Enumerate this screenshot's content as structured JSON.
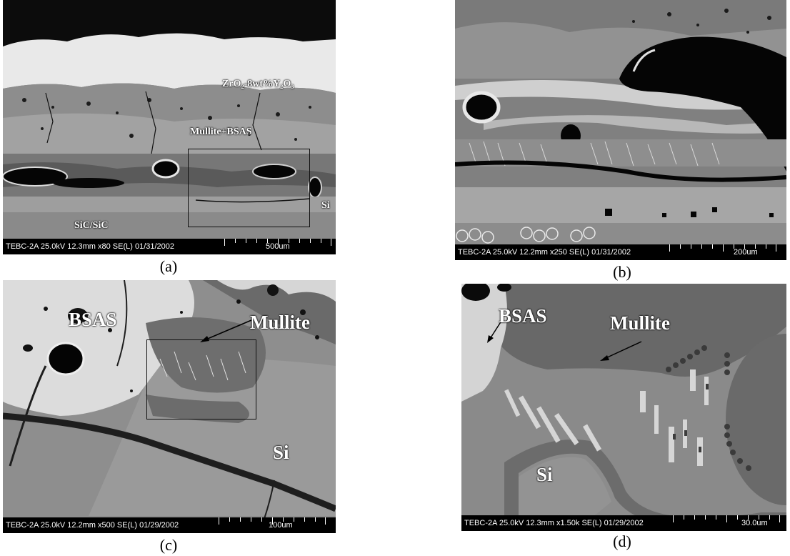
{
  "panels": {
    "a": {
      "caption": "(a)",
      "meta": "TEBC-2A 25.0kV 12.3mm x80 SE(L) 01/31/2002",
      "scale": "500um",
      "labels": {
        "zro2": "ZrO₂-8wt%Y₂O₃",
        "mullite_bsas": "Mullite+BSAS",
        "si": "Si",
        "sic": "SiC/SiC"
      }
    },
    "b": {
      "caption": "(b)",
      "meta": "TEBC-2A 25.0kV 12.2mm x250 SE(L) 01/31/2002",
      "scale": "200um"
    },
    "c": {
      "caption": "(c)",
      "meta": "TEBC-2A 25.0kV 12.2mm x500 SE(L) 01/29/2002",
      "scale": "100um",
      "labels": {
        "bsas": "BSAS",
        "mullite": "Mullite",
        "si": "Si"
      }
    },
    "d": {
      "caption": "(d)",
      "meta": "TEBC-2A 25.0kV 12.3mm x1.50k SE(L) 01/29/2002",
      "scale": "30.0um",
      "labels": {
        "bsas": "BSAS",
        "mullite": "Mullite",
        "si": "Si"
      }
    }
  }
}
